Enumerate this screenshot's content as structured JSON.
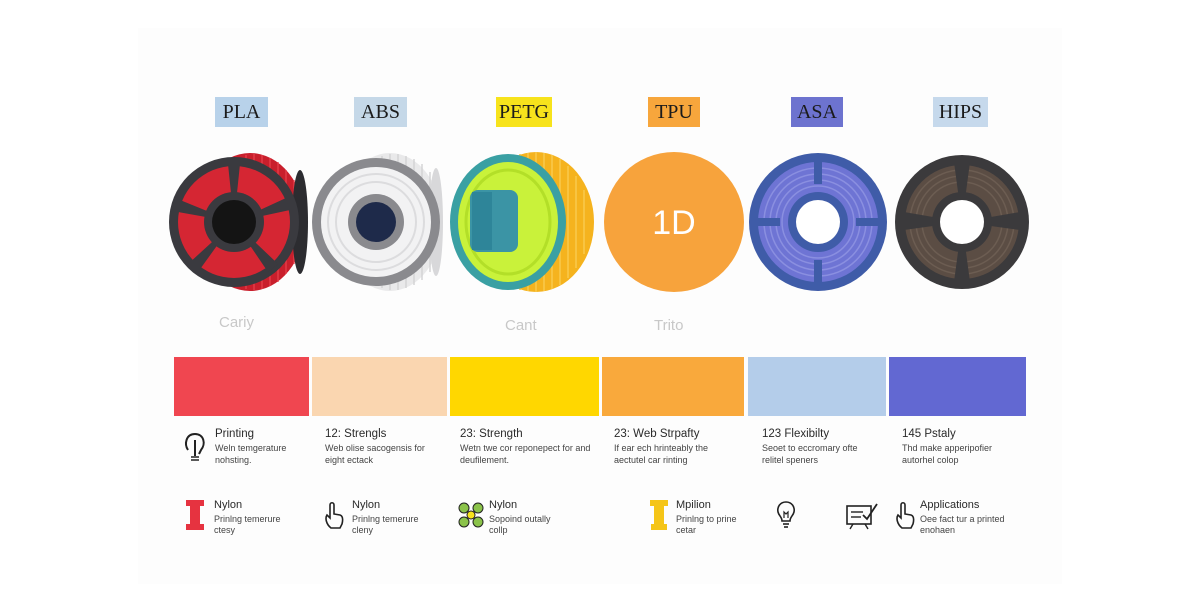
{
  "materials": [
    {
      "name": "PLA",
      "label_bg": "#b8d2ea",
      "accent": "#e63340"
    },
    {
      "name": "ABS",
      "label_bg": "#c5d8e8",
      "accent": "#eeeeee"
    },
    {
      "name": "PETG",
      "label_bg": "#f7e31c",
      "accent": "#f5b825"
    },
    {
      "name": "TPU",
      "label_bg": "#f7a63c",
      "accent": "#f7a63c"
    },
    {
      "name": "ASA",
      "label_bg": "#6d73cf",
      "accent": "#6e74d4"
    },
    {
      "name": "HIPS",
      "label_bg": "#c6d9ec",
      "accent": "#5c5048"
    }
  ],
  "faint_labels": [
    "Cariy",
    "Cant",
    "Trito"
  ],
  "tpu_logo": "1D",
  "swatches": [
    "#f04650",
    "#fad6b0",
    "#ffd700",
    "#f9a93c",
    "#b4cdea",
    "#6268d2"
  ],
  "properties": [
    {
      "title": "Printing",
      "desc": "Weln temgerature\nnohsting."
    },
    {
      "title": "12: Strengls",
      "desc": "Web olise sacogensis for\neight ectack"
    },
    {
      "title": "23: Strength",
      "desc": "Wetn twe cor reponepect for and\ndeufilement."
    },
    {
      "title": "23: Web Strpafty",
      "desc": "If ear ech hrinteably the\naectutel car rinting"
    },
    {
      "title": "123 Flexibilty",
      "desc": "Seoet to eccromary ofte\nrelitel speners"
    },
    {
      "title": "145 Pstaly",
      "desc": "Thd make apperipofier\nautorhel colop"
    }
  ],
  "applications": [
    {
      "title": "Nylon",
      "desc": "Prinlng temerure\nctesy",
      "icon": "red-spool-icon"
    },
    {
      "title": "Nylon",
      "desc": "Prinlng temerure\ncleny",
      "icon": "hand-pointer-icon"
    },
    {
      "title": "Nylon",
      "desc": "Sopoind outally\ncollp",
      "icon": "molecule-icon"
    },
    {
      "title": "Mpilion",
      "desc": "Prinlng to prine\ncetar",
      "icon": "yellow-spool-icon"
    },
    {
      "title": "",
      "desc": "",
      "icon": "lightbulb-icon"
    },
    {
      "title": "",
      "desc": "",
      "icon": "checklist-board-icon"
    },
    {
      "title": "Applications",
      "desc": "Oee fact tur a printed\nenohaen",
      "icon": "hand-finger-icon"
    }
  ]
}
